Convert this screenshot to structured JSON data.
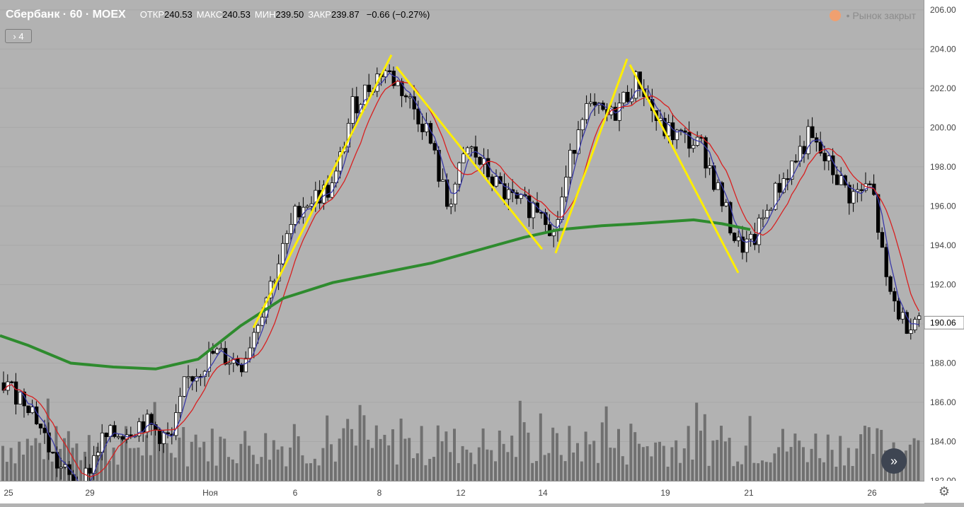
{
  "header": {
    "symbol": "Сбербанк · 60 · MOEX",
    "open_label": "ОТКР",
    "open": "240.53",
    "high_label": "МАКС",
    "high": "240.53",
    "low_label": "МИН",
    "low": "239.50",
    "close_label": "ЗАКР",
    "close": "239.87",
    "change": "−0.66 (−0.27%)",
    "collapse_label": "› 4",
    "market_status": "• Рынок закрыт"
  },
  "colors": {
    "background": "#b2b2b2",
    "candle_up": "#ffffff",
    "candle_down": "#000000",
    "ma_fast": "#3a3aa8",
    "ma_slow": "#d82020",
    "ma_long": "#2e8b2e",
    "pattern": "#ffee00",
    "volume": "#707070"
  },
  "chart_data": {
    "type": "candlestick",
    "y_range": [
      182,
      206.5
    ],
    "y_ticks": [
      "206.00",
      "204.00",
      "202.00",
      "200.00",
      "198.00",
      "196.00",
      "194.00",
      "192.00",
      "190.00",
      "188.00",
      "186.00",
      "184.00",
      "182.00"
    ],
    "last_price": "190.06",
    "x_labels": [
      "25",
      "29",
      "Ноя",
      "6",
      "8",
      "12",
      "14",
      "19",
      "21",
      "26"
    ],
    "ma_long": [
      [
        0,
        189.4
      ],
      [
        40,
        188.9
      ],
      [
        100,
        188.0
      ],
      [
        160,
        187.8
      ],
      [
        220,
        187.7
      ],
      [
        280,
        188.2
      ],
      [
        340,
        189.9
      ],
      [
        400,
        191.3
      ],
      [
        470,
        192.1
      ],
      [
        540,
        192.6
      ],
      [
        610,
        193.1
      ],
      [
        680,
        193.8
      ],
      [
        740,
        194.4
      ],
      [
        790,
        194.8
      ],
      [
        850,
        195.0
      ],
      [
        900,
        195.1
      ],
      [
        940,
        195.2
      ],
      [
        980,
        195.3
      ],
      [
        1020,
        195.1
      ],
      [
        1060,
        194.8
      ]
    ],
    "pattern_points": [
      [
        358,
        189.7
      ],
      [
        553,
        203.7
      ]
    ],
    "pattern_lines": [
      [
        [
          358,
          189.8
        ],
        [
          553,
          203.7
        ]
      ],
      [
        [
          560,
          203.1
        ],
        [
          766,
          193.8
        ]
      ],
      [
        [
          785,
          193.6
        ],
        [
          886,
          203.5
        ]
      ],
      [
        [
          890,
          203.2
        ],
        [
          1043,
          192.6
        ]
      ]
    ]
  }
}
